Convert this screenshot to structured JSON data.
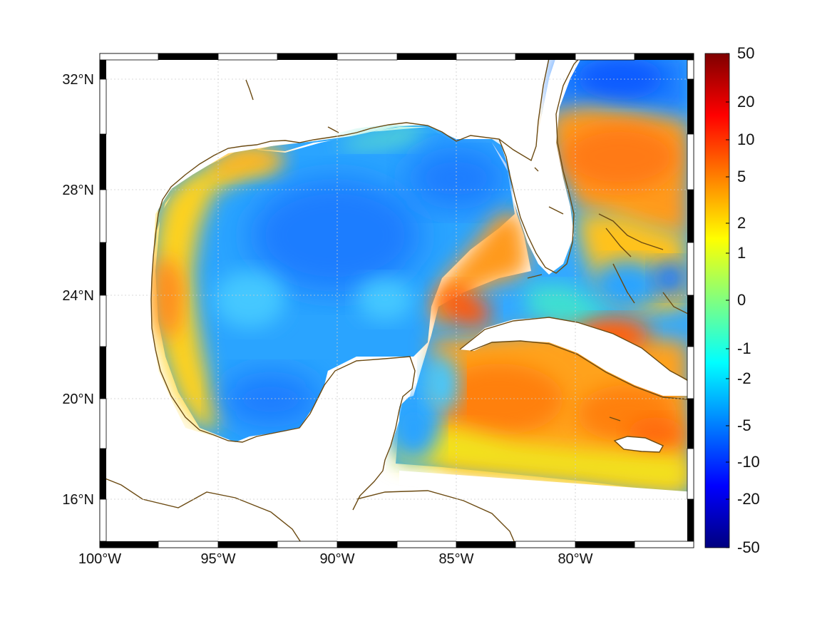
{
  "map": {
    "extent": {
      "lon_min": -100,
      "lon_max": -75,
      "lat_min": 14.5,
      "lat_max": 33
    },
    "lon_ticks": [
      {
        "lon": -100,
        "label": "100°W"
      },
      {
        "lon": -95,
        "label": "95°W"
      },
      {
        "lon": -90,
        "label": "90°W"
      },
      {
        "lon": -85,
        "label": "85°W"
      },
      {
        "lon": -80,
        "label": "80°W"
      }
    ],
    "lat_ticks": [
      {
        "lat": 32,
        "label": "32°N"
      },
      {
        "lat": 28,
        "label": "28°N"
      },
      {
        "lat": 24,
        "label": "24°N"
      },
      {
        "lat": 20,
        "label": "20°N"
      },
      {
        "lat": 16,
        "label": "16°N"
      }
    ],
    "grid": true,
    "coastline_color": "#6b4a12"
  },
  "colorbar": {
    "scale": "nonlinear",
    "ticks": [
      "50",
      "20",
      "10",
      "5",
      "2",
      "1",
      "0",
      "-1",
      "-2",
      "-5",
      "-10",
      "-20",
      "-50"
    ],
    "colors": [
      "#7f0000",
      "#ff0000",
      "#ff8000",
      "#ffff00",
      "#80ff80",
      "#00ffff",
      "#0080ff",
      "#0000ff",
      "#00007f"
    ]
  }
}
